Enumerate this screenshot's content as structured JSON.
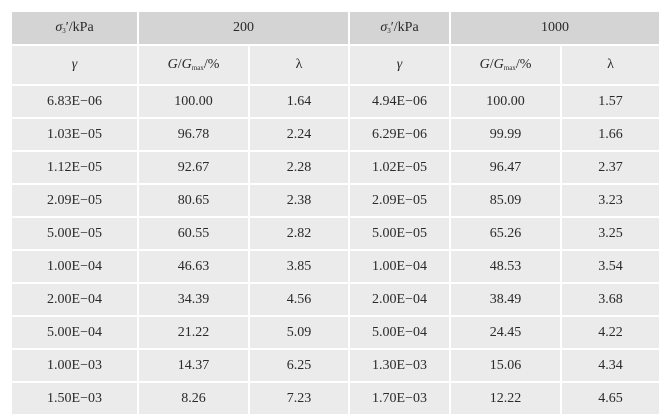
{
  "header": {
    "stress_label_1": {
      "symbol": "σ",
      "sub": "3",
      "rest": "′/kPa"
    },
    "stress_value_1": "200",
    "stress_label_2": {
      "symbol": "σ",
      "sub": "3",
      "rest": "′/kPa"
    },
    "stress_value_2": "1000"
  },
  "columns": {
    "strain": "γ",
    "modulus": {
      "g": "G",
      "slash": "/",
      "gmax": "G",
      "gmax_sub": "max",
      "rest": "/%"
    },
    "damping": "λ"
  },
  "rows": [
    [
      "6.83E−06",
      "100.00",
      "1.64",
      "4.94E−06",
      "100.00",
      "1.57"
    ],
    [
      "1.03E−05",
      "96.78",
      "2.24",
      "6.29E−06",
      "99.99",
      "1.66"
    ],
    [
      "1.12E−05",
      "92.67",
      "2.28",
      "1.02E−05",
      "96.47",
      "2.37"
    ],
    [
      "2.09E−05",
      "80.65",
      "2.38",
      "2.09E−05",
      "85.09",
      "3.23"
    ],
    [
      "5.00E−05",
      "60.55",
      "2.82",
      "5.00E−05",
      "65.26",
      "3.25"
    ],
    [
      "1.00E−04",
      "46.63",
      "3.85",
      "1.00E−04",
      "48.53",
      "3.54"
    ],
    [
      "2.00E−04",
      "34.39",
      "4.56",
      "2.00E−04",
      "38.49",
      "3.68"
    ],
    [
      "5.00E−04",
      "21.22",
      "5.09",
      "5.00E−04",
      "24.45",
      "4.22"
    ],
    [
      "1.00E−03",
      "14.37",
      "6.25",
      "1.30E−03",
      "15.06",
      "4.34"
    ],
    [
      "1.50E−03",
      "8.26",
      "7.23",
      "1.70E−03",
      "12.22",
      "4.65"
    ]
  ]
}
